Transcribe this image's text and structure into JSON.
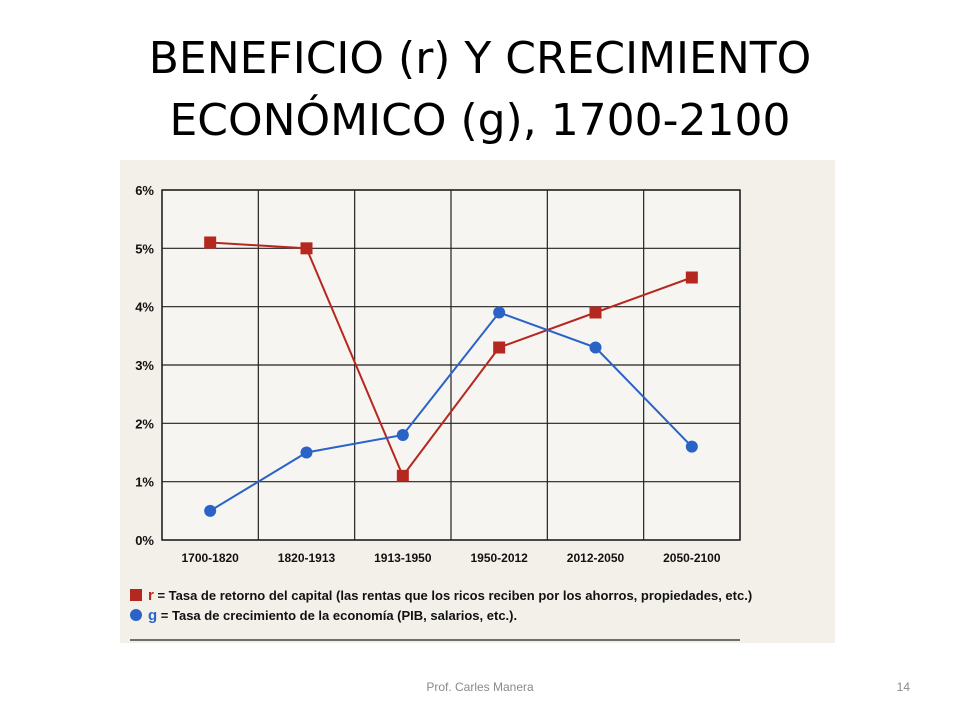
{
  "slide": {
    "title_line1": "BENEFICIO (r) Y CRECIMIENTO",
    "title_line2": "ECONÓMICO (g), 1700-2100",
    "footer_author": "Prof. Carles Manera",
    "page_number": "14"
  },
  "chart_data": {
    "type": "line",
    "categories": [
      "1700-1820",
      "1820-1913",
      "1913-1950",
      "1950-2012",
      "2012-2050",
      "2050-2100"
    ],
    "y_ticks": [
      "0%",
      "1%",
      "2%",
      "3%",
      "4%",
      "5%",
      "6%"
    ],
    "ylim": [
      0,
      6
    ],
    "grid": true,
    "legend_position": "bottom-left",
    "series": [
      {
        "key": "r",
        "name": "Tasa de retorno del capital (las rentas que los ricos reciben por los ahorros, propiedades, etc.)",
        "marker": "square",
        "color": "#b5281f",
        "values": [
          5.1,
          5.0,
          1.1,
          3.3,
          3.9,
          4.5
        ]
      },
      {
        "key": "g",
        "name": "Tasa de crecimiento de la economía (PIB, salarios, etc.).",
        "marker": "circle",
        "color": "#2a63c7",
        "values": [
          0.5,
          1.5,
          1.8,
          3.9,
          3.3,
          1.6
        ]
      }
    ]
  }
}
